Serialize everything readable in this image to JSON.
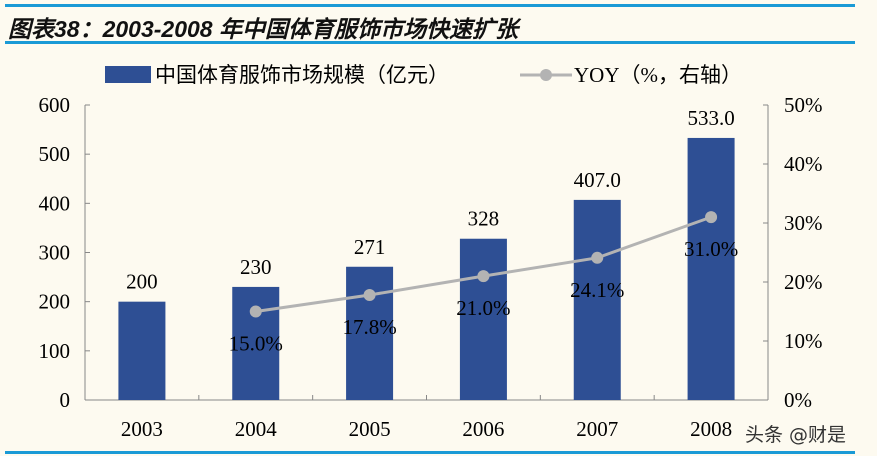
{
  "title": "图表38：2003-2008 年中国体育服饰市场快速扩张",
  "watermark": "头条 @财是",
  "chart_data": {
    "type": "bar+line",
    "categories": [
      "2003",
      "2004",
      "2005",
      "2006",
      "2007",
      "2008"
    ],
    "series": [
      {
        "name": "中国体育服饰市场规模（亿元）",
        "type": "bar",
        "axis": "left",
        "values": [
          200,
          230,
          271,
          328,
          407,
          533
        ],
        "labels": [
          "200",
          "230",
          "271",
          "328",
          "407.0",
          "533.0"
        ],
        "color": "#2e4f94"
      },
      {
        "name": "YOY（%，右轴）",
        "type": "line",
        "axis": "right",
        "values": [
          null,
          15.0,
          17.8,
          21.0,
          24.1,
          31.0
        ],
        "labels": [
          "",
          "15.0%",
          "17.8%",
          "21.0%",
          "24.1%",
          "31.0%"
        ],
        "color": "#b3b3b3"
      }
    ],
    "left_axis": {
      "range": [
        0,
        600
      ],
      "ticks": [
        "0",
        "100",
        "200",
        "300",
        "400",
        "500",
        "600"
      ]
    },
    "right_axis": {
      "range": [
        0,
        50
      ],
      "ticks": [
        "0%",
        "10%",
        "20%",
        "30%",
        "40%",
        "50%"
      ]
    },
    "grid": false,
    "legend": "top"
  }
}
